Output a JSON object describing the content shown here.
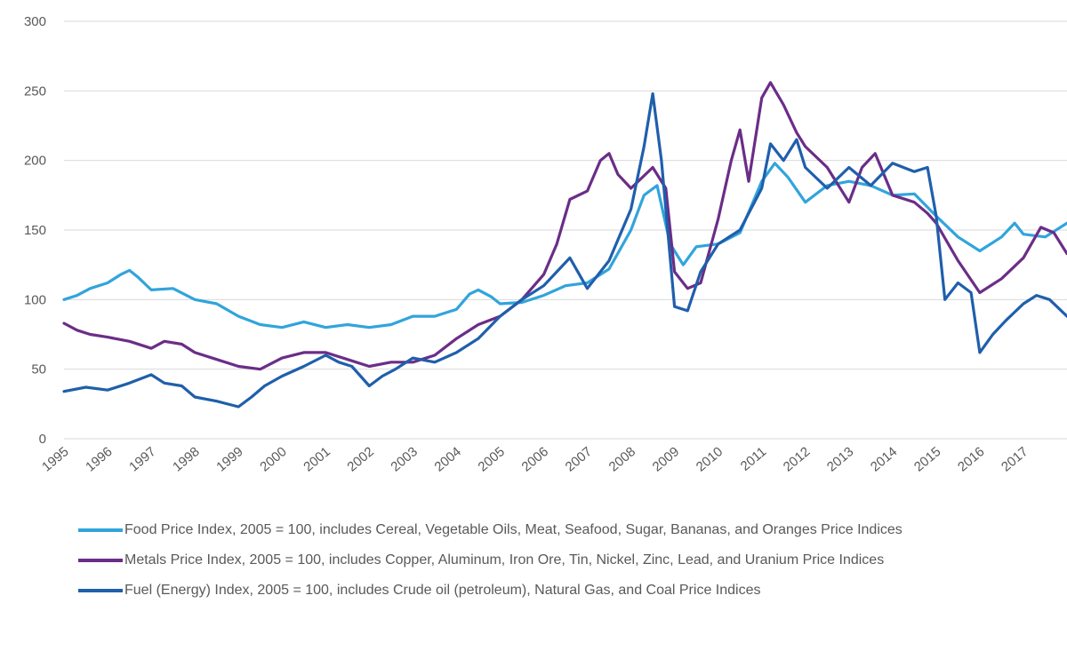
{
  "chart_data": {
    "type": "line",
    "ylim": [
      0,
      300
    ],
    "yticks": [
      0,
      50,
      100,
      150,
      200,
      250,
      300
    ],
    "xlim": [
      1995,
      2018
    ],
    "xticks": [
      "1995",
      "1996",
      "1997",
      "1998",
      "1999",
      "2000",
      "2001",
      "2002",
      "2003",
      "2004",
      "2005",
      "2006",
      "2007",
      "2008",
      "2009",
      "2010",
      "2011",
      "2012",
      "2013",
      "2014",
      "2015",
      "2016",
      "2017"
    ],
    "grid": true,
    "legend_position": "bottom",
    "series": [
      {
        "name": "Food Price Index, 2005 = 100, includes Cereal, Vegetable Oils, Meat, Seafood, Sugar, Bananas, and Oranges Price Indices",
        "color": "#31a4dc",
        "points": [
          [
            1995.0,
            100
          ],
          [
            1995.3,
            103
          ],
          [
            1995.6,
            108
          ],
          [
            1996.0,
            112
          ],
          [
            1996.3,
            118
          ],
          [
            1996.5,
            121
          ],
          [
            1996.7,
            116
          ],
          [
            1997.0,
            107
          ],
          [
            1997.5,
            108
          ],
          [
            1998.0,
            100
          ],
          [
            1998.5,
            97
          ],
          [
            1999.0,
            88
          ],
          [
            1999.5,
            82
          ],
          [
            2000.0,
            80
          ],
          [
            2000.5,
            84
          ],
          [
            2001.0,
            80
          ],
          [
            2001.5,
            82
          ],
          [
            2002.0,
            80
          ],
          [
            2002.5,
            82
          ],
          [
            2003.0,
            88
          ],
          [
            2003.5,
            88
          ],
          [
            2004.0,
            93
          ],
          [
            2004.3,
            104
          ],
          [
            2004.5,
            107
          ],
          [
            2004.8,
            102
          ],
          [
            2005.0,
            97
          ],
          [
            2005.5,
            98
          ],
          [
            2006.0,
            103
          ],
          [
            2006.5,
            110
          ],
          [
            2007.0,
            112
          ],
          [
            2007.5,
            122
          ],
          [
            2008.0,
            150
          ],
          [
            2008.3,
            175
          ],
          [
            2008.6,
            182
          ],
          [
            2008.9,
            140
          ],
          [
            2009.2,
            125
          ],
          [
            2009.5,
            138
          ],
          [
            2010.0,
            140
          ],
          [
            2010.5,
            148
          ],
          [
            2011.0,
            185
          ],
          [
            2011.3,
            198
          ],
          [
            2011.6,
            188
          ],
          [
            2012.0,
            170
          ],
          [
            2012.5,
            182
          ],
          [
            2013.0,
            185
          ],
          [
            2013.5,
            182
          ],
          [
            2014.0,
            175
          ],
          [
            2014.5,
            176
          ],
          [
            2015.0,
            160
          ],
          [
            2015.5,
            145
          ],
          [
            2016.0,
            135
          ],
          [
            2016.5,
            145
          ],
          [
            2016.8,
            155
          ],
          [
            2017.0,
            147
          ],
          [
            2017.5,
            145
          ],
          [
            2018.0,
            155
          ]
        ]
      },
      {
        "name": "Metals Price Index, 2005 = 100, includes Copper, Aluminum, Iron Ore, Tin, Nickel, Zinc, Lead, and Uranium Price Indices",
        "color": "#6b2d87",
        "points": [
          [
            1995.0,
            83
          ],
          [
            1995.3,
            78
          ],
          [
            1995.6,
            75
          ],
          [
            1996.0,
            73
          ],
          [
            1996.5,
            70
          ],
          [
            1997.0,
            65
          ],
          [
            1997.3,
            70
          ],
          [
            1997.7,
            68
          ],
          [
            1998.0,
            62
          ],
          [
            1998.5,
            57
          ],
          [
            1999.0,
            52
          ],
          [
            1999.5,
            50
          ],
          [
            2000.0,
            58
          ],
          [
            2000.5,
            62
          ],
          [
            2001.0,
            62
          ],
          [
            2001.5,
            57
          ],
          [
            2002.0,
            52
          ],
          [
            2002.5,
            55
          ],
          [
            2003.0,
            55
          ],
          [
            2003.5,
            60
          ],
          [
            2004.0,
            72
          ],
          [
            2004.5,
            82
          ],
          [
            2005.0,
            88
          ],
          [
            2005.5,
            100
          ],
          [
            2006.0,
            118
          ],
          [
            2006.3,
            140
          ],
          [
            2006.6,
            172
          ],
          [
            2007.0,
            178
          ],
          [
            2007.3,
            200
          ],
          [
            2007.5,
            205
          ],
          [
            2007.7,
            190
          ],
          [
            2008.0,
            180
          ],
          [
            2008.5,
            195
          ],
          [
            2008.8,
            180
          ],
          [
            2009.0,
            120
          ],
          [
            2009.3,
            108
          ],
          [
            2009.6,
            112
          ],
          [
            2010.0,
            158
          ],
          [
            2010.3,
            200
          ],
          [
            2010.5,
            222
          ],
          [
            2010.7,
            185
          ],
          [
            2011.0,
            245
          ],
          [
            2011.2,
            256
          ],
          [
            2011.5,
            240
          ],
          [
            2011.8,
            220
          ],
          [
            2012.0,
            210
          ],
          [
            2012.5,
            195
          ],
          [
            2013.0,
            170
          ],
          [
            2013.3,
            195
          ],
          [
            2013.6,
            205
          ],
          [
            2014.0,
            175
          ],
          [
            2014.5,
            170
          ],
          [
            2014.8,
            162
          ],
          [
            2015.0,
            155
          ],
          [
            2015.5,
            128
          ],
          [
            2016.0,
            105
          ],
          [
            2016.5,
            115
          ],
          [
            2017.0,
            130
          ],
          [
            2017.4,
            152
          ],
          [
            2017.7,
            148
          ],
          [
            2018.0,
            133
          ]
        ]
      },
      {
        "name": "Fuel (Energy) Index, 2005 = 100, includes Crude oil (petroleum), Natural Gas, and Coal Price Indices",
        "color": "#1f5fac",
        "points": [
          [
            1995.0,
            34
          ],
          [
            1995.5,
            37
          ],
          [
            1996.0,
            35
          ],
          [
            1996.5,
            40
          ],
          [
            1997.0,
            46
          ],
          [
            1997.3,
            40
          ],
          [
            1997.7,
            38
          ],
          [
            1998.0,
            30
          ],
          [
            1998.5,
            27
          ],
          [
            1999.0,
            23
          ],
          [
            1999.3,
            30
          ],
          [
            1999.6,
            38
          ],
          [
            2000.0,
            45
          ],
          [
            2000.5,
            52
          ],
          [
            2001.0,
            60
          ],
          [
            2001.3,
            55
          ],
          [
            2001.6,
            52
          ],
          [
            2002.0,
            38
          ],
          [
            2002.3,
            45
          ],
          [
            2002.6,
            50
          ],
          [
            2003.0,
            58
          ],
          [
            2003.5,
            55
          ],
          [
            2004.0,
            62
          ],
          [
            2004.5,
            72
          ],
          [
            2005.0,
            88
          ],
          [
            2005.5,
            100
          ],
          [
            2006.0,
            110
          ],
          [
            2006.3,
            120
          ],
          [
            2006.6,
            130
          ],
          [
            2007.0,
            108
          ],
          [
            2007.5,
            128
          ],
          [
            2008.0,
            165
          ],
          [
            2008.3,
            210
          ],
          [
            2008.5,
            248
          ],
          [
            2008.7,
            200
          ],
          [
            2009.0,
            95
          ],
          [
            2009.3,
            92
          ],
          [
            2009.6,
            120
          ],
          [
            2010.0,
            140
          ],
          [
            2010.5,
            150
          ],
          [
            2011.0,
            180
          ],
          [
            2011.2,
            212
          ],
          [
            2011.5,
            200
          ],
          [
            2011.8,
            215
          ],
          [
            2012.0,
            195
          ],
          [
            2012.5,
            180
          ],
          [
            2013.0,
            195
          ],
          [
            2013.5,
            182
          ],
          [
            2014.0,
            198
          ],
          [
            2014.5,
            192
          ],
          [
            2014.8,
            195
          ],
          [
            2015.0,
            160
          ],
          [
            2015.2,
            100
          ],
          [
            2015.5,
            112
          ],
          [
            2015.8,
            105
          ],
          [
            2016.0,
            62
          ],
          [
            2016.3,
            75
          ],
          [
            2016.6,
            85
          ],
          [
            2017.0,
            97
          ],
          [
            2017.3,
            103
          ],
          [
            2017.6,
            100
          ],
          [
            2018.0,
            88
          ]
        ]
      }
    ]
  }
}
